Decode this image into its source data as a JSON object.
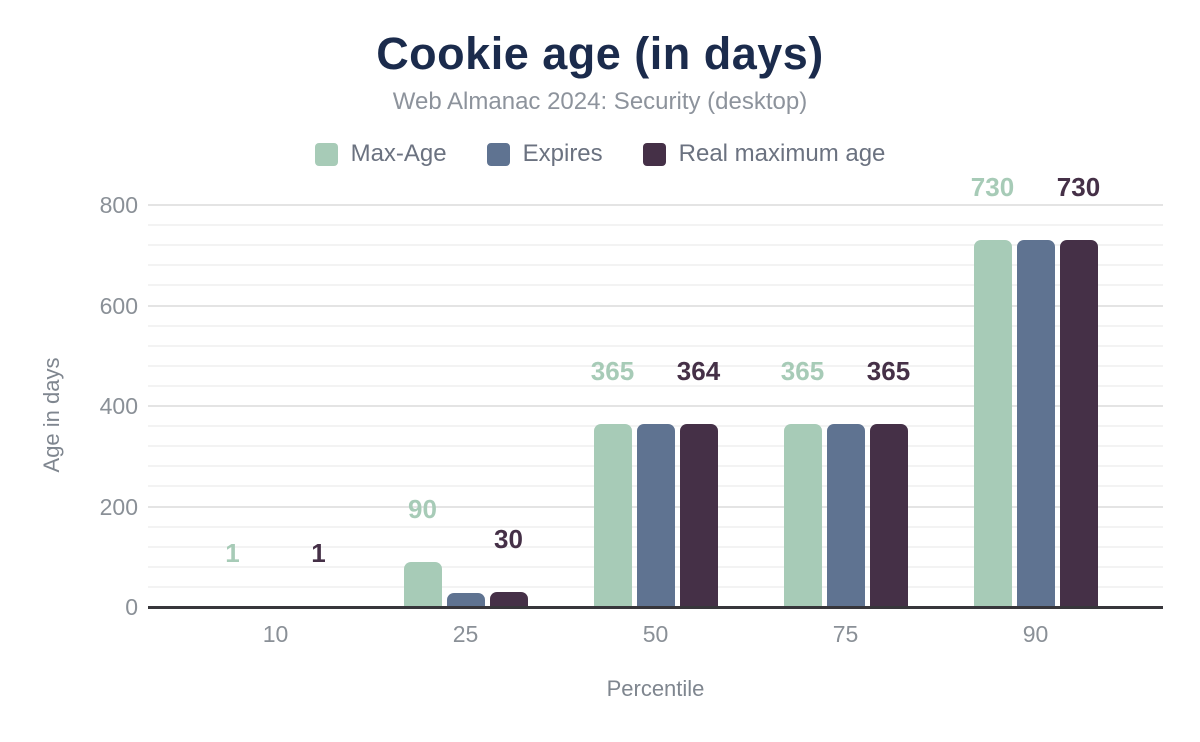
{
  "chart_data": {
    "type": "bar",
    "title": "Cookie age (in days)",
    "subtitle": "Web Almanac 2024: Security (desktop)",
    "xlabel": "Percentile",
    "ylabel": "Age in days",
    "categories": [
      "10",
      "25",
      "50",
      "75",
      "90"
    ],
    "series": [
      {
        "name": "Max-Age",
        "color": "#a7cbb7",
        "values": [
          1,
          90,
          365,
          365,
          730
        ],
        "data_labels": [
          "1",
          "90",
          "365",
          "365",
          "730"
        ],
        "show_labels": true
      },
      {
        "name": "Expires",
        "color": "#5f7391",
        "values": [
          0,
          28,
          365,
          365,
          730
        ],
        "data_labels": null,
        "show_labels": false
      },
      {
        "name": "Real maximum age",
        "color": "#453047",
        "values": [
          1,
          30,
          364,
          365,
          730
        ],
        "data_labels": [
          "1",
          "30",
          "364",
          "365",
          "730"
        ],
        "show_labels": true
      }
    ],
    "ylim": [
      0,
      800
    ],
    "yticks": [
      0,
      200,
      400,
      600,
      800
    ],
    "minor_tick_step": 40,
    "grid": true,
    "legend_position": "top"
  },
  "colors": {
    "title_text": "#1b2b4c",
    "subtitle_text": "#8d939c",
    "legend_text": "#6b7280",
    "axis_text": "#8a9097",
    "axis_line": "#37363b",
    "grid_major": "#e4e4e4",
    "grid_minor": "#f3f3f3",
    "background": "#ffffff"
  }
}
